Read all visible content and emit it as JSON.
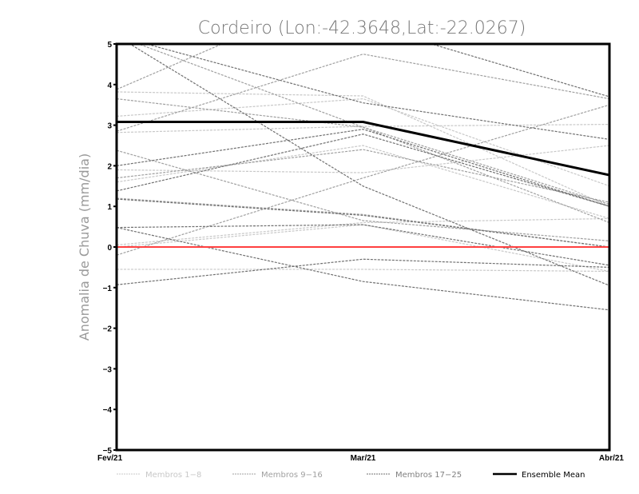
{
  "chart_data": {
    "type": "line",
    "title": "Cordeiro (Lon:-42.3648,Lat:-22.0267)",
    "ylabel": "Anomalia de Chuva (mm/dia)",
    "xlabel": "",
    "categories": [
      "Fev/21",
      "Mar/21",
      "Abr/21"
    ],
    "ylim": [
      -5,
      5
    ],
    "yticks": [
      -5,
      -4,
      -3,
      -2,
      -1,
      0,
      1,
      2,
      3,
      4,
      5
    ],
    "ytick_labels": [
      "−5",
      "−4",
      "−3",
      "−2",
      "−1",
      "0",
      "1",
      "2",
      "3",
      "4",
      "5"
    ],
    "grid": false,
    "legend_position": "bottom",
    "groups": [
      {
        "name": "Membros 1-8",
        "color": "#c8c8c8",
        "series": [
          [
            3.82,
            3.72,
            1.0
          ],
          [
            3.22,
            3.65,
            1.5
          ],
          [
            2.82,
            2.97,
            3.02
          ],
          [
            1.9,
            1.83,
            2.5
          ],
          [
            1.6,
            2.5,
            0.7
          ],
          [
            0.05,
            0.6,
            0.7
          ],
          [
            -0.55,
            -0.55,
            -0.6
          ],
          [
            0.0,
            0.55,
            -0.6
          ]
        ]
      },
      {
        "name": "Membros 9-16",
        "color": "#a0a0a0",
        "series": [
          [
            3.88,
            6.5,
            6.0
          ],
          [
            2.85,
            4.75,
            3.65
          ],
          [
            2.38,
            0.65,
            0.15
          ],
          [
            1.7,
            2.4,
            1.1
          ],
          [
            -0.2,
            1.7,
            3.5
          ],
          [
            3.65,
            2.95,
            1.05
          ],
          [
            5.2,
            2.95,
            0.6
          ],
          [
            1.2,
            0.8,
            0.0
          ]
        ]
      },
      {
        "name": "Membros 17-25",
        "color": "#707070",
        "series": [
          [
            5.2,
            3.55,
            2.65
          ],
          [
            5.2,
            1.5,
            -0.95
          ],
          [
            1.38,
            2.78,
            1.0
          ],
          [
            0.48,
            -0.85,
            -1.55
          ],
          [
            -0.93,
            -0.3,
            -0.5
          ],
          [
            7.0,
            5.5,
            3.7
          ],
          [
            1.18,
            0.78,
            0.0
          ],
          [
            2.0,
            2.9,
            1.0
          ],
          [
            0.48,
            0.55,
            -0.45
          ]
        ]
      }
    ],
    "ensemble_mean": {
      "name": "Ensemble Mean",
      "color": "#000000",
      "values": [
        3.08,
        3.08,
        1.77
      ]
    },
    "zero_line_color": "#ff4040"
  }
}
